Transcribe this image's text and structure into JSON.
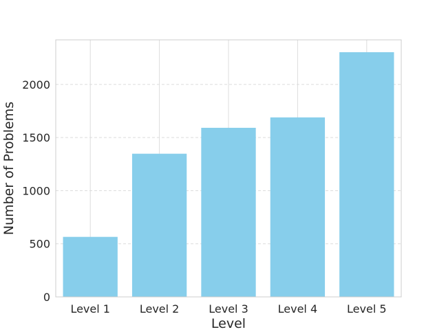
{
  "chart_data": {
    "type": "bar",
    "title": "",
    "xlabel": "Level",
    "ylabel": "Number of Problems",
    "categories": [
      "Level 1",
      "Level 2",
      "Level 3",
      "Level 4",
      "Level 5"
    ],
    "values": [
      565,
      1348,
      1592,
      1690,
      2304
    ],
    "ylim": [
      0,
      2420
    ],
    "yticks": [
      0,
      500,
      1000,
      1500,
      2000
    ],
    "grid": true,
    "bar_color": "#87CEEB",
    "grid_color": "#dcdcdc",
    "axis_color": "#cccccc"
  }
}
